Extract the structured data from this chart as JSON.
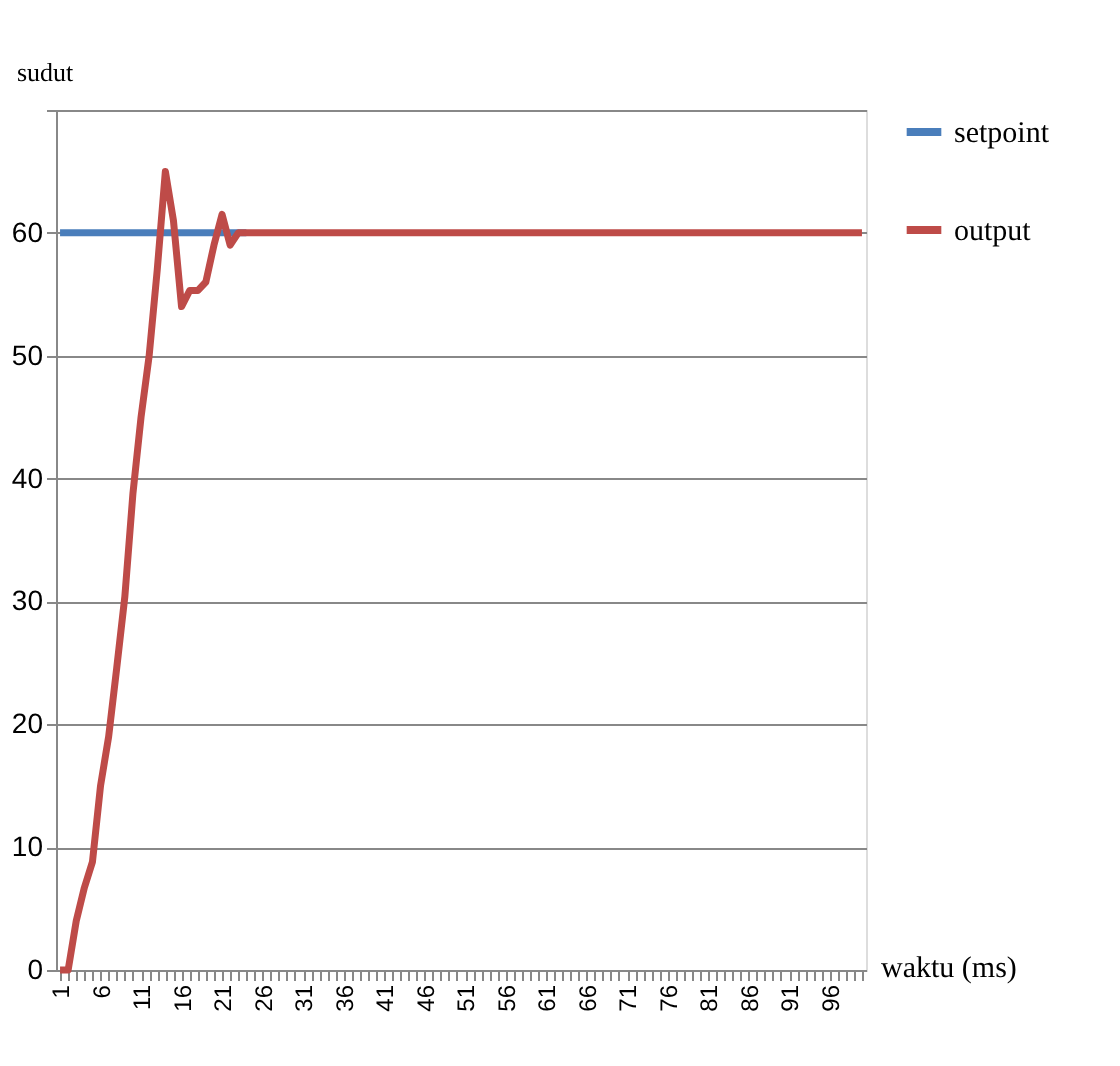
{
  "chart_data": {
    "type": "line",
    "xlabel": "waktu (ms)",
    "ylabel": "sudut",
    "categories": [
      "1",
      null,
      null,
      null,
      null,
      "6",
      null,
      null,
      null,
      null,
      "11",
      null,
      null,
      null,
      null,
      "16",
      null,
      null,
      null,
      null,
      "21",
      null,
      null,
      null,
      null,
      "26",
      null,
      null,
      null,
      null,
      "31",
      null,
      null,
      null,
      null,
      "36",
      null,
      null,
      null,
      null,
      "41",
      null,
      null,
      null,
      null,
      "46",
      null,
      null,
      null,
      null,
      "51",
      null,
      null,
      null,
      null,
      "56",
      null,
      null,
      null,
      null,
      "61",
      null,
      null,
      null,
      null,
      "66",
      null,
      null,
      null,
      null,
      "71",
      null,
      null,
      null,
      null,
      "76",
      null,
      null,
      null,
      null,
      "81",
      null,
      null,
      null,
      null,
      "86",
      null,
      null,
      null,
      null,
      "91",
      null,
      null,
      null,
      null,
      "96",
      null,
      null,
      null,
      null
    ],
    "series": [
      {
        "name": "setpoint",
        "color": "#4a7ebb",
        "values": [
          60,
          60,
          60,
          60,
          60,
          60,
          60,
          60,
          60,
          60,
          60,
          60,
          60,
          60,
          60,
          60,
          60,
          60,
          60,
          60,
          60,
          60,
          60,
          60,
          null,
          null,
          null,
          null,
          null,
          null,
          null,
          null,
          null,
          null,
          null,
          null,
          null,
          null,
          null,
          null,
          null,
          null,
          null,
          null,
          null,
          null,
          null,
          null,
          null,
          null,
          null,
          null,
          null,
          null,
          null,
          null,
          null,
          null,
          null,
          null,
          null,
          null,
          null,
          null,
          null,
          null,
          null,
          null,
          null,
          null,
          null,
          null,
          null,
          null,
          null,
          null,
          null,
          null,
          null,
          null,
          null,
          null,
          null,
          null,
          null,
          null,
          null,
          null,
          null,
          null,
          null,
          null,
          null,
          null,
          null,
          null,
          null,
          null,
          null,
          null
        ]
      },
      {
        "name": "output",
        "color": "#be4b48",
        "values": [
          0,
          0,
          4,
          6.7,
          8.8,
          15,
          19,
          24.6,
          30.4,
          38.8,
          45,
          50,
          57,
          65,
          61,
          54,
          55.3,
          55.3,
          56,
          59,
          61.5,
          59,
          60,
          60,
          60,
          60,
          60,
          60,
          60,
          60,
          60,
          60,
          60,
          60,
          60,
          60,
          60,
          60,
          60,
          60,
          60,
          60,
          60,
          60,
          60,
          60,
          60,
          60,
          60,
          60,
          60,
          60,
          60,
          60,
          60,
          60,
          60,
          60,
          60,
          60,
          60,
          60,
          60,
          60,
          60,
          60,
          60,
          60,
          60,
          60,
          60,
          60,
          60,
          60,
          60,
          60,
          60,
          60,
          60,
          60,
          60,
          60,
          60,
          60,
          60,
          60,
          60,
          60,
          60,
          60,
          60,
          60,
          60,
          60,
          60,
          60,
          60,
          60,
          60,
          60
        ]
      }
    ],
    "ylim": [
      0,
      70
    ],
    "yticks": [
      0,
      10,
      20,
      30,
      40,
      50,
      60,
      {
        "value": 70,
        "label": null
      }
    ],
    "grid": "y",
    "legend": "right",
    "line_style": "solid",
    "marker": "none"
  }
}
